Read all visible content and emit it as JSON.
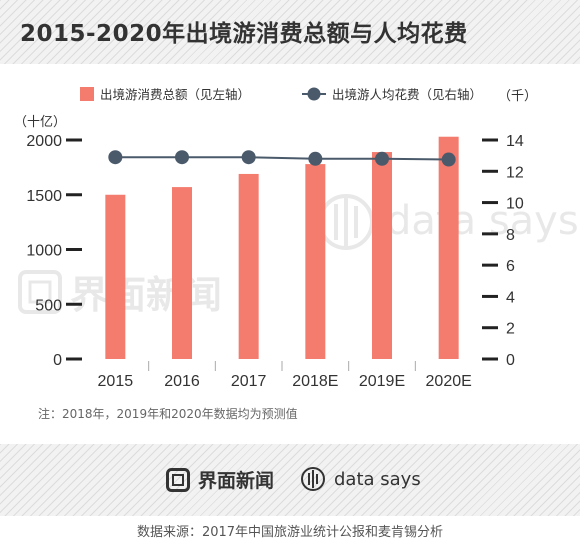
{
  "title": "2015-2020年出境游消费总额与人均花费",
  "chart_data": {
    "type": "bar+line",
    "categories": [
      "2015",
      "2016",
      "2017",
      "2018E",
      "2019E",
      "2020E"
    ],
    "series": [
      {
        "name": "出境游消费总额（见左轴）",
        "type": "bar",
        "axis": "left",
        "color": "#f47c6e",
        "values": [
          1500,
          1570,
          1690,
          1780,
          1890,
          2030
        ]
      },
      {
        "name": "出境游人均花费（见右轴）",
        "type": "line",
        "axis": "right",
        "color": "#4a5a6b",
        "values": [
          12.9,
          12.9,
          12.9,
          12.8,
          12.8,
          12.75
        ]
      }
    ],
    "left_unit": "（十亿）",
    "right_unit": "（千）",
    "ylim_left": [
      0,
      2000
    ],
    "yticks_left": [
      "0",
      "500",
      "1000",
      "1500",
      "2000"
    ],
    "ylim_right": [
      0,
      14
    ],
    "yticks_right": [
      "0",
      "2",
      "4",
      "6",
      "8",
      "10",
      "12",
      "14"
    ],
    "legend_position": "top",
    "gridlines": false,
    "note": "注：2018年，2019年和2020年数据均为预测值"
  },
  "watermarks": {
    "brand_cn": "界面新闻",
    "brand_en": "data says"
  },
  "footer": {
    "brand_cn": "界面新闻",
    "brand_en": "data says",
    "source": "数据来源：2017年中国旅游业统计公报和麦肯锡分析"
  }
}
